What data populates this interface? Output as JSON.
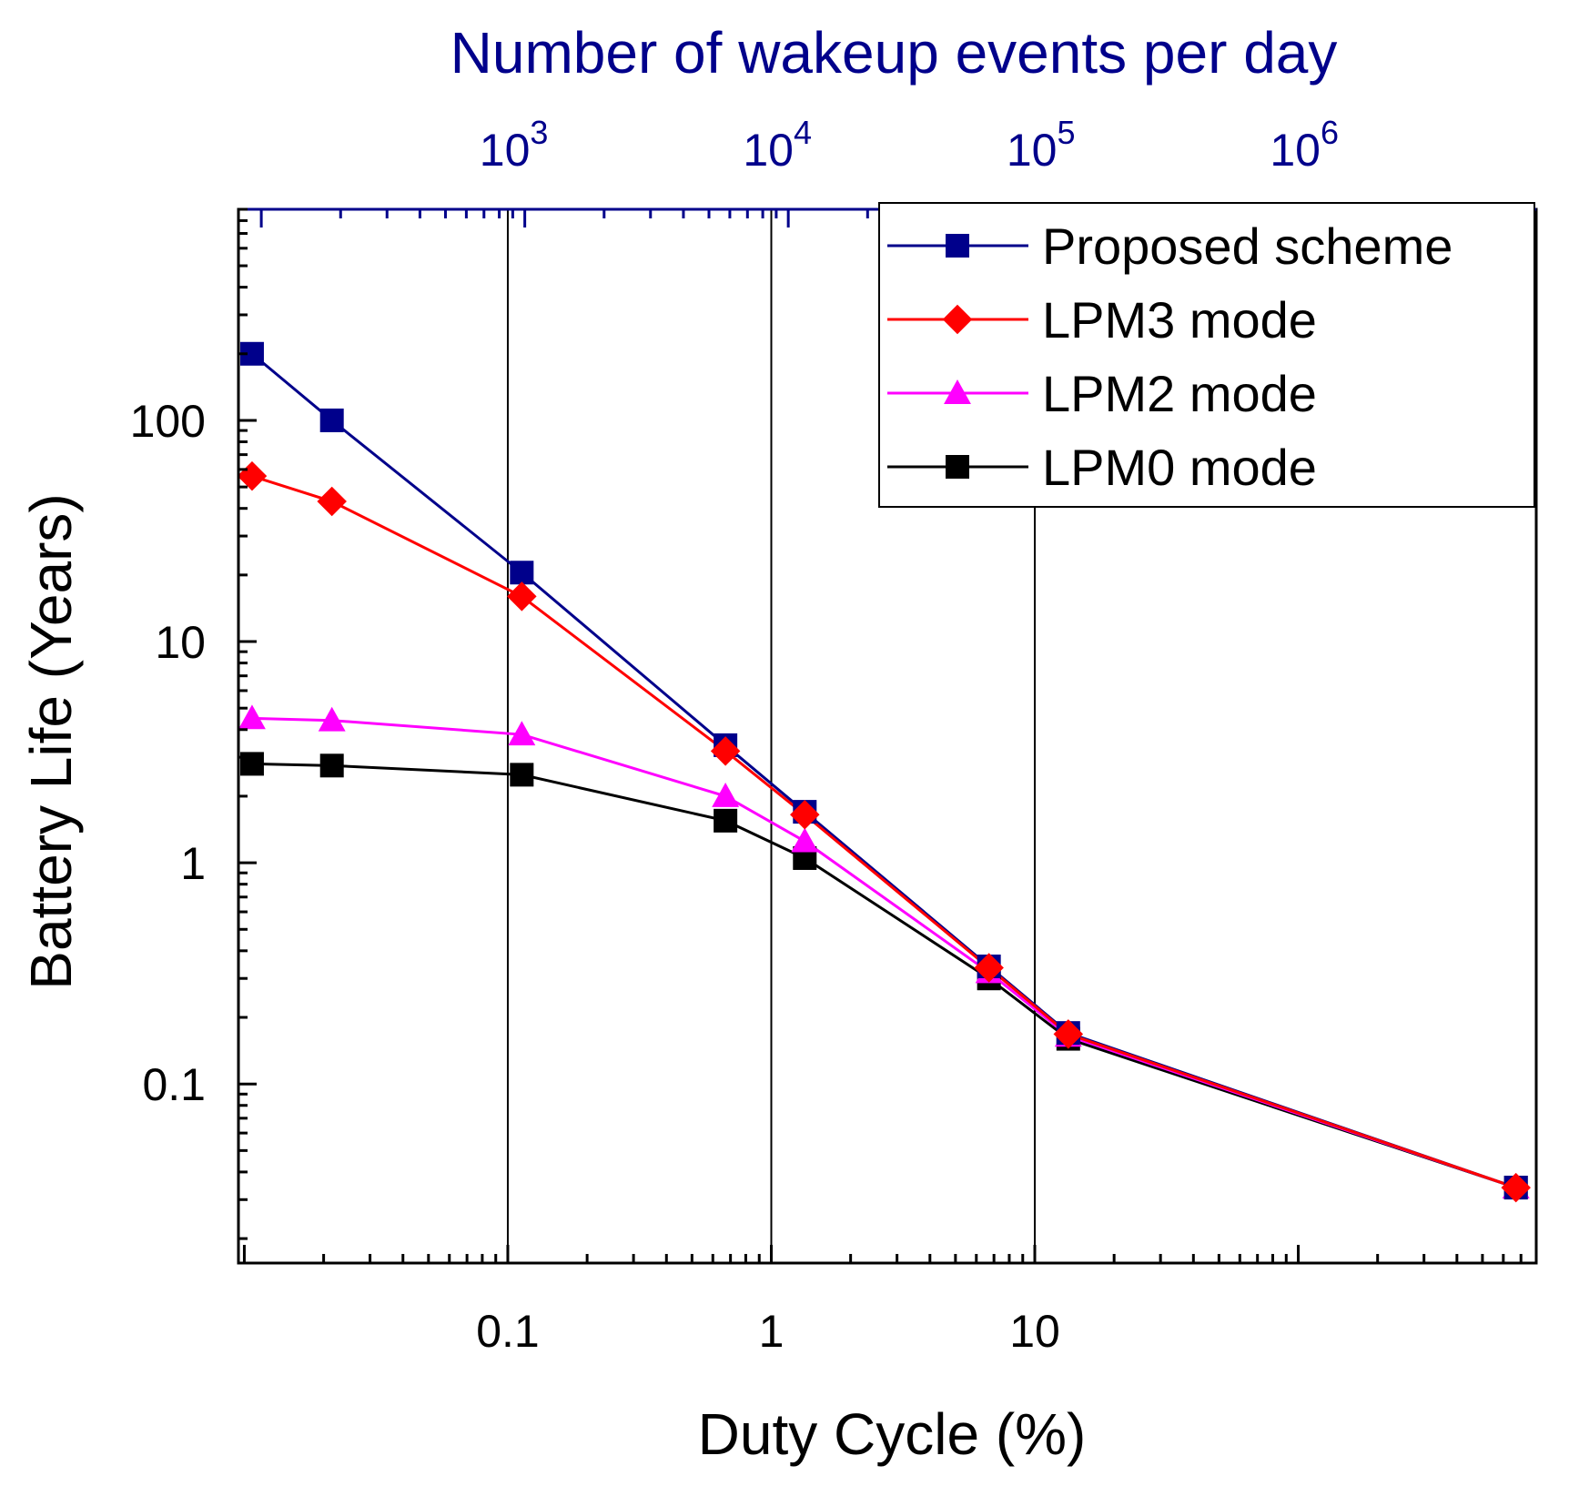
{
  "chart_data": {
    "type": "line",
    "title": "",
    "xlabel": "Duty Cycle (%)",
    "ylabel": "Battery Life (Years)",
    "x_scale": "log",
    "y_scale": "log",
    "xlim": [
      0.0095,
      800
    ],
    "ylim": [
      0.0155,
      900
    ],
    "x_ticks": [
      {
        "value": 0.1,
        "label": "0.1"
      },
      {
        "value": 1,
        "label": "1"
      },
      {
        "value": 10,
        "label": "10"
      }
    ],
    "y_ticks": [
      {
        "value": 0.1,
        "label": "0.1"
      },
      {
        "value": 1,
        "label": "1"
      },
      {
        "value": 10,
        "label": "10"
      },
      {
        "value": 100,
        "label": "100"
      }
    ],
    "top_axis": {
      "label": "Number of wakeup events per day",
      "ticks": [
        {
          "base": "10",
          "exp": "3",
          "at_duty_cycle": 0.116
        },
        {
          "base": "10",
          "exp": "4",
          "at_duty_cycle": 1.16
        },
        {
          "base": "10",
          "exp": "5",
          "at_duty_cycle": 11.6
        },
        {
          "base": "10",
          "exp": "6",
          "at_duty_cycle": 116
        }
      ],
      "color": "#00008b"
    },
    "vertical_gridlines_at": [
      0.1,
      1,
      10
    ],
    "legend_position": "top-right",
    "x": [
      0.0107,
      0.0215,
      0.113,
      0.67,
      1.34,
      6.7,
      13.4,
      670
    ],
    "series": [
      {
        "name": "Proposed scheme",
        "color": "#00008b",
        "marker": "square",
        "values": [
          200,
          100,
          20.5,
          3.4,
          1.7,
          0.34,
          0.17,
          0.034
        ]
      },
      {
        "name": "LPM3 mode",
        "color": "#ff0000",
        "marker": "diamond",
        "values": [
          56,
          43,
          16,
          3.2,
          1.65,
          0.335,
          0.168,
          0.034
        ]
      },
      {
        "name": "LPM2 mode",
        "color": "#ff00ff",
        "marker": "triangle",
        "values": [
          4.5,
          4.4,
          3.8,
          2.0,
          1.25,
          0.32,
          0.165,
          0.034
        ]
      },
      {
        "name": "LPM0 mode",
        "color": "#000000",
        "marker": "square",
        "values": [
          2.8,
          2.75,
          2.5,
          1.55,
          1.05,
          0.3,
          0.16,
          0.034
        ]
      }
    ]
  }
}
